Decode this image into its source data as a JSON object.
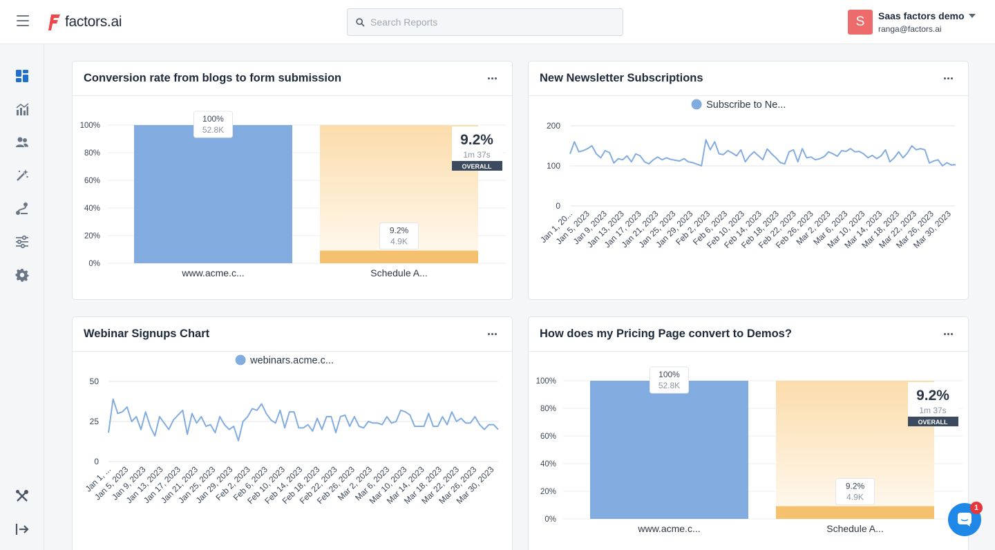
{
  "header": {
    "logo_text": "factors.ai",
    "search_placeholder": "Search Reports",
    "account_initial": "S",
    "account_name": "Saas factors demo",
    "account_email": "ranga@factors.ai"
  },
  "sidebar": {
    "items": [
      "dashboard-icon",
      "analytics-icon",
      "people-icon",
      "magic-wand-icon",
      "journey-icon",
      "sliders-icon",
      "gear-icon",
      "tools-icon",
      "logout-icon"
    ]
  },
  "chat": {
    "badge_count": "1"
  },
  "cards": [
    {
      "title": "Conversion rate from blogs to form submission",
      "chart_data": {
        "type": "bar",
        "subtype": "funnel",
        "categories": [
          "www.acme.c...",
          "Schedule A..."
        ],
        "values_percent": [
          100,
          9.2
        ],
        "value_labels": [
          "100%",
          "9.2%"
        ],
        "count_labels": [
          "52.8K",
          "4.9K"
        ],
        "ylim": [
          0,
          100
        ],
        "y_ticks": [
          "0%",
          "20%",
          "40%",
          "60%",
          "80%",
          "100%"
        ],
        "overall": {
          "rate": "9.2%",
          "time": "1m 37s",
          "label": "OVERALL"
        },
        "colors": {
          "first": "#82acdf",
          "second": "#f6c16e",
          "second_bg_top": "#fbdcab"
        }
      }
    },
    {
      "title": "New Newsletter Subscriptions",
      "chart_data": {
        "type": "line",
        "series": [
          {
            "name": "Subscribe to Ne...",
            "color": "#82acdf",
            "values": [
              130,
              160,
              135,
              138,
              143,
              150,
              130,
              120,
              138,
              133,
              107,
              118,
              115,
              125,
              110,
              130,
              125,
              110,
              105,
              115,
              122,
              115,
              120,
              116,
              114,
              112,
              118,
              110,
              108,
              104,
              100,
              165,
              140,
              160,
              130,
              128,
              138,
              132,
              125,
              140,
              110,
              125,
              135,
              125,
              115,
              142,
              130,
              120,
              108,
              105,
              135,
              140,
              110,
              143,
              120,
              122,
              115,
              118,
              123,
              135,
              130,
              124,
              138,
              136,
              143,
              135,
              136,
              130,
              120,
              126,
              118,
              125,
              140,
              110,
              120,
              135,
              120,
              132,
              150,
              140,
              143,
              140,
              107,
              112,
              115,
              100,
              108,
              102,
              103
            ]
          }
        ],
        "x_ticks": [
          "Jan 1, 20...",
          "Jan 5, 2023",
          "Jan 9, 2023",
          "Jan 13, 2023",
          "Jan 17, 2023",
          "Jan 21, 2023",
          "Jan 25, 2023",
          "Jan 29, 2023",
          "Feb 2, 2023",
          "Feb 6, 2023",
          "Feb 10, 2023",
          "Feb 14, 2023",
          "Feb 18, 2023",
          "Feb 22, 2023",
          "Feb 26, 2023",
          "Mar 2, 2023",
          "Mar 6, 2023",
          "Mar 10, 2023",
          "Mar 14, 2023",
          "Mar 18, 2023",
          "Mar 22, 2023",
          "Mar 26, 2023",
          "Mar 30, 2023"
        ],
        "y_ticks": [
          0,
          100,
          200
        ],
        "ylim": [
          0,
          200
        ],
        "legend_position": "top"
      }
    },
    {
      "title": "Webinar Signups Chart",
      "chart_data": {
        "type": "line",
        "series": [
          {
            "name": "webinars.acme.c...",
            "color": "#82acdf",
            "values": [
              18,
              39,
              30,
              31,
              34,
              25,
              28,
              20,
              31,
              22,
              16,
              28,
              24,
              20,
              26,
              29,
              32,
              17,
              30,
              24,
              28,
              22,
              23,
              18,
              28,
              23,
              20,
              22,
              13,
              25,
              28,
              33,
              32,
              36,
              30,
              26,
              24,
              32,
              21,
              31,
              31,
              21,
              21,
              23,
              19,
              27,
              20,
              28,
              28,
              18,
              28,
              29,
              22,
              28,
              22,
              21,
              25,
              24,
              24,
              23,
              28,
              24,
              25,
              32,
              31,
              29,
              22,
              22,
              22,
              30,
              22,
              22,
              28,
              23,
              31,
              25,
              27,
              24,
              24,
              28,
              23,
              20,
              23,
              23,
              20
            ]
          }
        ],
        "x_ticks": [
          "Jan 1, ...",
          "Jan 5, 2023",
          "Jan 9, 2023",
          "Jan 13, 2023",
          "Jan 17, 2023",
          "Jan 21, 2023",
          "Jan 25, 2023",
          "Jan 29, 2023",
          "Feb 2, 2023",
          "Feb 6, 2023",
          "Feb 10, 2023",
          "Feb 14, 2023",
          "Feb 18, 2023",
          "Feb 22, 2023",
          "Feb 26, 2023",
          "Mar 2, 2023",
          "Mar 6, 2023",
          "Mar 10, 2023",
          "Mar 14, 2023",
          "Mar 18, 2023",
          "Mar 22, 2023",
          "Mar 26, 2023",
          "Mar 30, 2023"
        ],
        "y_ticks": [
          0,
          25,
          50
        ],
        "ylim": [
          0,
          50
        ],
        "legend_position": "top"
      }
    },
    {
      "title": "How does my Pricing Page convert to Demos?",
      "chart_data": {
        "type": "bar",
        "subtype": "funnel",
        "categories": [
          "www.acme.c...",
          "Schedule A..."
        ],
        "values_percent": [
          100,
          9.2
        ],
        "value_labels": [
          "100%",
          "9.2%"
        ],
        "count_labels": [
          "52.8K",
          "4.9K"
        ],
        "ylim": [
          0,
          100
        ],
        "y_ticks": [
          "0%",
          "20%",
          "40%",
          "60%",
          "80%",
          "100%"
        ],
        "overall": {
          "rate": "9.2%",
          "time": "1m 37s",
          "label": "OVERALL"
        },
        "colors": {
          "first": "#82acdf",
          "second": "#f6c16e",
          "second_bg_top": "#fbdcab"
        }
      }
    }
  ]
}
